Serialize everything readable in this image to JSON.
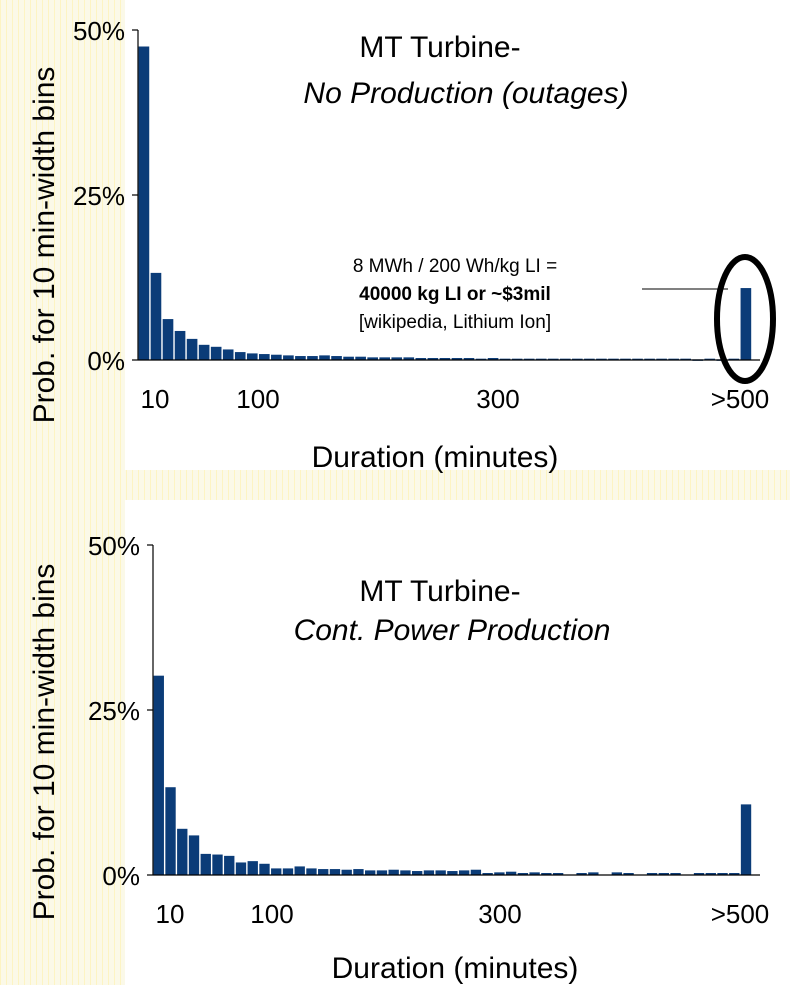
{
  "chart_data": [
    {
      "type": "bar",
      "title": "MT Turbine-",
      "subtitle": "No Production (outages)",
      "xlabel": "Duration (minutes)",
      "ylabel": "Prob. for 10 min-width bins",
      "ylim": [
        0,
        50
      ],
      "yticks": [
        "0%",
        "25%",
        "50%"
      ],
      "xticks": [
        "10",
        "100",
        "300",
        ">500"
      ],
      "grid": false,
      "values": [
        47.5,
        13.2,
        6.2,
        4.4,
        3.2,
        2.3,
        2.0,
        1.6,
        1.2,
        1.0,
        0.9,
        0.8,
        0.7,
        0.6,
        0.6,
        0.7,
        0.6,
        0.5,
        0.5,
        0.4,
        0.4,
        0.4,
        0.4,
        0.3,
        0.3,
        0.3,
        0.3,
        0.3,
        0.2,
        0.3,
        0.2,
        0.2,
        0.2,
        0.2,
        0.2,
        0.2,
        0.2,
        0.2,
        0.2,
        0.2,
        0.2,
        0.2,
        0.2,
        0.2,
        0.2,
        0.2,
        0.1,
        0.2,
        0.1,
        0.2,
        10.9
      ],
      "annotation": {
        "line1": "8 MWh / 200 Wh/kg LI =",
        "line2": "40000 kg LI or ~$3mil",
        "line3": "[wikipedia, Lithium Ion]"
      },
      "highlight_last_bar": true
    },
    {
      "type": "bar",
      "title": "MT Turbine-",
      "subtitle": "Cont. Power Production",
      "xlabel": "Duration (minutes)",
      "ylabel": "Prob. for 10 min-width bins",
      "ylim": [
        0,
        50
      ],
      "yticks": [
        "0%",
        "25%",
        "50%"
      ],
      "xticks": [
        "10",
        "100",
        "300",
        ">500"
      ],
      "grid": false,
      "values": [
        30.2,
        13.3,
        7.0,
        6.0,
        3.2,
        3.1,
        2.9,
        1.9,
        2.1,
        1.7,
        1.0,
        1.0,
        1.3,
        1.0,
        0.9,
        0.9,
        0.8,
        0.9,
        0.7,
        0.7,
        0.8,
        0.7,
        0.6,
        0.7,
        0.7,
        0.6,
        0.7,
        0.8,
        0.3,
        0.4,
        0.5,
        0.3,
        0.4,
        0.3,
        0.3,
        0,
        0.3,
        0.4,
        0,
        0.4,
        0.3,
        0,
        0.3,
        0.3,
        0.3,
        0,
        0.3,
        0.3,
        0.3,
        0.3,
        10.7
      ]
    }
  ]
}
